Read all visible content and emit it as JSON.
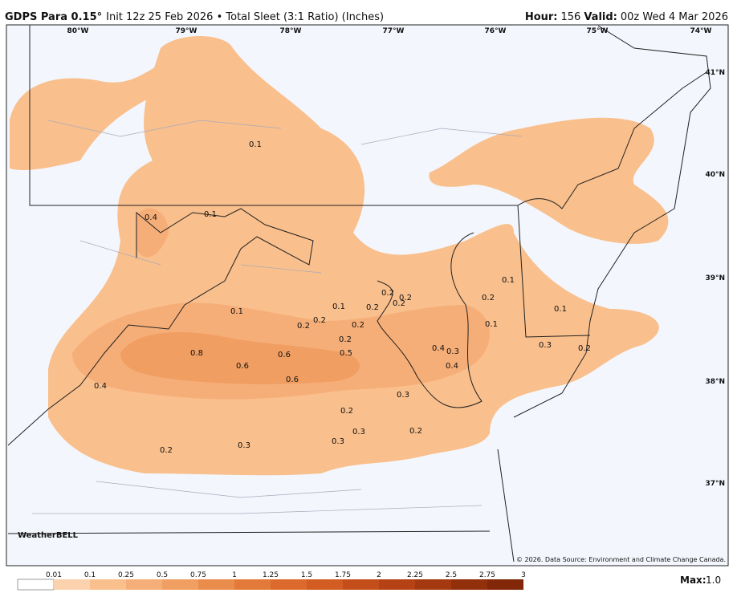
{
  "header": {
    "model": "GDPS Para 0.15°",
    "info": "Init 12z 25 Feb 2026 • Total Sleet (3:1 Ratio) (Inches)",
    "hour_label": "Hour:",
    "hour": "156",
    "valid_label": "Valid:",
    "valid": "00z Wed 4 Mar 2026"
  },
  "map": {
    "longitudes": [
      "80°W",
      "79°W",
      "78°W",
      "77°W",
      "76°W",
      "75°W",
      "74°W"
    ],
    "latitudes": [
      "41°N",
      "40°N",
      "39°N",
      "38°N",
      "37°N"
    ],
    "contour_labels": [
      "0.1",
      "0.4",
      "0.1",
      "0.1",
      "0.8",
      "0.6",
      "0.6",
      "0.6",
      "0.4",
      "0.2",
      "0.3",
      "0.2",
      "0.2",
      "0.1",
      "0.2",
      "0.2",
      "0.2",
      "0.2",
      "0.2",
      "0.5",
      "0.2",
      "0.3",
      "0.2",
      "0.3",
      "0.3",
      "0.2",
      "0.4",
      "0.3",
      "0.4",
      "0.1",
      "0.2",
      "0.1",
      "0.1",
      "0.3",
      "0.2"
    ],
    "logo": "WeatherBELL",
    "copyright": "© 2026. Data Source: Environment and Climate Change Canada."
  },
  "colorbar": {
    "ticks": [
      "0.01",
      "0.1",
      "0.25",
      "0.5",
      "0.75",
      "1",
      "1.25",
      "1.5",
      "1.75",
      "2",
      "2.25",
      "2.5",
      "2.75",
      "3"
    ],
    "colors": [
      "#ffffff",
      "#fbd2ad",
      "#f9bf8c",
      "#f6ae78",
      "#f09e62",
      "#ea8c4c",
      "#e47a3a",
      "#dc6a2c",
      "#d25c22",
      "#c44e1a",
      "#b54214",
      "#a4380f",
      "#93300c",
      "#822708"
    ],
    "max_label": "Max:",
    "max": "1.0"
  }
}
